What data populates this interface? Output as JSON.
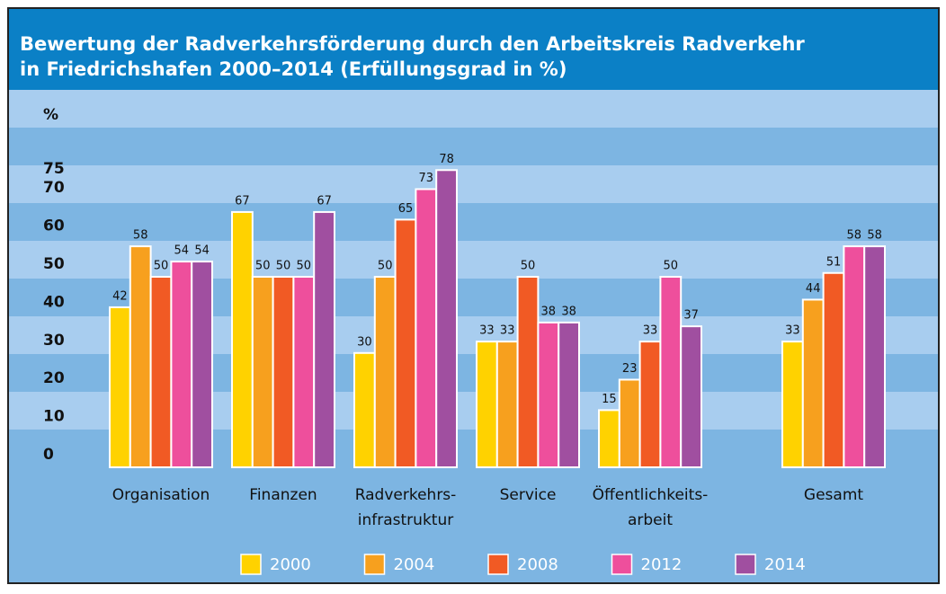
{
  "chart_data": {
    "type": "bar",
    "title": [
      "Bewertung der Radverkehrsförderung durch den Arbeitskreis Radverkehr",
      "in Friedrichshafen 2000–2014 (Erfüllungsgrad in %)"
    ],
    "y_label": "%",
    "categories": [
      "Organisation",
      "Finanzen",
      "Radverkehrs-infrastruktur",
      "Service",
      "Öffentlichkeits-arbeit",
      "Gesamt"
    ],
    "series": [
      {
        "name": "2000",
        "color": "#ffd200",
        "values": [
          42,
          67,
          30,
          33,
          15,
          33
        ]
      },
      {
        "name": "2004",
        "color": "#f7a01e",
        "values": [
          58,
          50,
          50,
          33,
          23,
          44
        ]
      },
      {
        "name": "2008",
        "color": "#f15a24",
        "values": [
          50,
          50,
          65,
          50,
          33,
          51
        ]
      },
      {
        "name": "2012",
        "color": "#ee4f9c",
        "values": [
          54,
          50,
          73,
          38,
          50,
          58
        ]
      },
      {
        "name": "2014",
        "color": "#a04fa0",
        "values": [
          54,
          67,
          78,
          38,
          37,
          58
        ]
      }
    ],
    "ylim": [
      0,
      85
    ],
    "yticks": [
      0,
      10,
      20,
      30,
      40,
      50,
      60,
      70,
      75
    ]
  }
}
